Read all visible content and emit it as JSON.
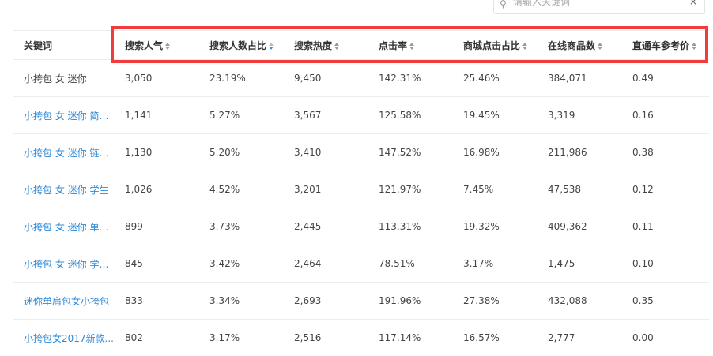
{
  "search": {
    "placeholder": "请输入关键词",
    "clear": "×"
  },
  "columns": [
    {
      "label": "关键词",
      "sortable": false
    },
    {
      "label": "搜索人气",
      "sortable": true,
      "sort": "none"
    },
    {
      "label": "搜索人数占比",
      "sortable": true,
      "sort": "desc"
    },
    {
      "label": "搜索热度",
      "sortable": true,
      "sort": "none"
    },
    {
      "label": "点击率",
      "sortable": true,
      "sort": "none"
    },
    {
      "label": "商城点击占比",
      "sortable": true,
      "sort": "none"
    },
    {
      "label": "在线商品数",
      "sortable": true,
      "sort": "none"
    },
    {
      "label": "直通车参考价",
      "sortable": true,
      "sort": "none"
    }
  ],
  "rows": [
    [
      "小挎包 女 迷你",
      "3,050",
      "23.19%",
      "9,450",
      "142.31%",
      "25.46%",
      "384,071",
      "0.49"
    ],
    [
      "小挎包 女 迷你 简约...",
      "1,141",
      "5.27%",
      "3,567",
      "125.58%",
      "19.45%",
      "3,319",
      "0.16"
    ],
    [
      "小挎包 女 迷你 链条包",
      "1,130",
      "5.20%",
      "3,410",
      "147.52%",
      "16.98%",
      "211,986",
      "0.38"
    ],
    [
      "小挎包 女 迷你 学生",
      "1,026",
      "4.52%",
      "3,201",
      "121.97%",
      "7.45%",
      "47,538",
      "0.12"
    ],
    [
      "小挎包 女 迷你 单肩...",
      "899",
      "3.73%",
      "2,445",
      "113.31%",
      "19.32%",
      "409,362",
      "0.11"
    ],
    [
      "小挎包 女 迷你 学生...",
      "845",
      "3.42%",
      "2,464",
      "78.51%",
      "3.17%",
      "1,475",
      "0.10"
    ],
    [
      "迷你单肩包女小挎包",
      "833",
      "3.34%",
      "2,693",
      "191.96%",
      "27.38%",
      "432,088",
      "0.35"
    ],
    [
      "小挎包女2017新款...",
      "802",
      "3.17%",
      "2,516",
      "117.14%",
      "16.57%",
      "2,777",
      "0.00"
    ]
  ],
  "colors": {
    "link": "#2e8ad8",
    "highlight": "#f23b3b",
    "sort_active": "#3f8fe0"
  }
}
